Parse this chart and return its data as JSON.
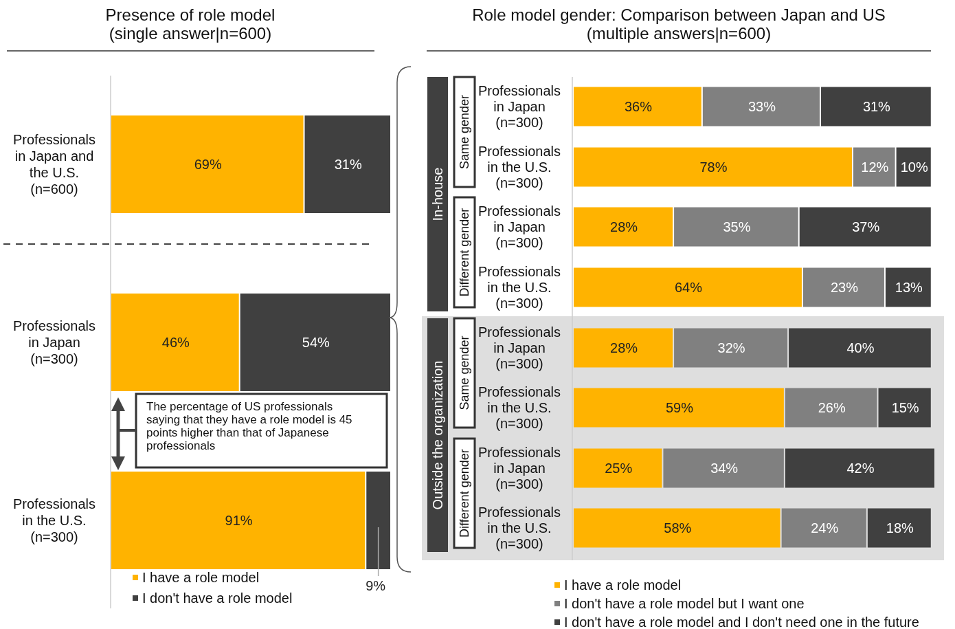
{
  "chart_data": [
    {
      "type": "bar",
      "orientation": "horizontal",
      "stacked": true,
      "title": "Presence of role model",
      "subtitle": "(single answer|n=600)",
      "categories": [
        "Professionals in Japan and the U.S. (n=600)",
        "Professionals in Japan (n=300)",
        "Professionals in the U.S. (n=300)"
      ],
      "series": [
        {
          "name": "I have a role model",
          "color": "#ffb300",
          "values": [
            69,
            46,
            91
          ],
          "value_labels": [
            "69%",
            "46%",
            "91%"
          ]
        },
        {
          "name": "I don't have a role model",
          "color": "#404040",
          "values": [
            31,
            54,
            9
          ],
          "value_labels": [
            "31%",
            "54%",
            "9%"
          ]
        }
      ],
      "legend": "bottom",
      "annotations": [
        "The percentage of US professionals saying that they have a role model is 45 points higher than that of Japanese professionals"
      ]
    },
    {
      "type": "bar",
      "orientation": "horizontal",
      "stacked": true,
      "title": "Role model gender: Comparison between Japan and US",
      "subtitle": "(multiple answers|n=600)",
      "categories": [
        "Professionals in Japan (n=300)",
        "Professionals in the U.S. (n=300)",
        "Professionals in Japan (n=300)",
        "Professionals in the U.S. (n=300)",
        "Professionals in Japan (n=300)",
        "Professionals in the U.S. (n=300)",
        "Professionals in Japan (n=300)",
        "Professionals in the U.S. (n=300)"
      ],
      "series": [
        {
          "name": "I have a role model",
          "color": "#ffb300",
          "values": [
            36,
            78,
            28,
            64,
            28,
            59,
            25,
            58
          ],
          "value_labels": [
            "36%",
            "78%",
            "28%",
            "64%",
            "28%",
            "59%",
            "25%",
            "58%"
          ]
        },
        {
          "name": "I don't have a role model but I want one",
          "color": "#808080",
          "values": [
            33,
            12,
            35,
            23,
            32,
            26,
            34,
            24
          ],
          "value_labels": [
            "33%",
            "12%",
            "35%",
            "23%",
            "32%",
            "26%",
            "34%",
            "24%"
          ]
        },
        {
          "name": "I don't have a role model and I don't need one in the future",
          "color": "#404040",
          "values": [
            31,
            10,
            37,
            13,
            40,
            15,
            42,
            18
          ],
          "value_labels": [
            "31%",
            "10%",
            "37%",
            "13%",
            "40%",
            "15%",
            "42%",
            "18%"
          ]
        }
      ],
      "legend": "bottom",
      "annotations": [
        "In-house",
        "Outside the organization",
        "Same gender",
        "Different gender",
        "Same gender",
        "Different gender"
      ]
    }
  ]
}
